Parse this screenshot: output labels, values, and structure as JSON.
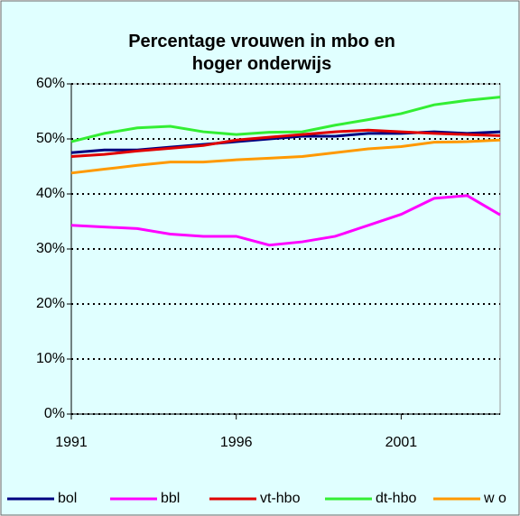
{
  "chart_data": {
    "type": "line",
    "title": "Percentage vrouwen in mbo en hoger onderwijs",
    "x": [
      1991,
      1992,
      1993,
      1994,
      1995,
      1996,
      1997,
      1998,
      1999,
      2000,
      2001,
      2002,
      2003,
      2004
    ],
    "xlim": [
      1991,
      2004
    ],
    "xticks": [
      1991,
      1996,
      2001
    ],
    "ylim": [
      0,
      60
    ],
    "yticks": [
      {
        "value": 0,
        "label": "0%"
      },
      {
        "value": 10,
        "label": "10%"
      },
      {
        "value": 20,
        "label": "20%"
      },
      {
        "value": 30,
        "label": "30%"
      },
      {
        "value": 40,
        "label": "40%"
      },
      {
        "value": 50,
        "label": "50%"
      },
      {
        "value": 60,
        "label": "60%"
      }
    ],
    "grid": true,
    "legend": "bottom",
    "series": [
      {
        "name": "bol",
        "color": "#000080",
        "values": [
          47.5,
          48,
          48,
          48.5,
          49,
          49.5,
          50,
          50.5,
          50.5,
          51,
          51,
          51.3,
          51,
          51.3
        ]
      },
      {
        "name": "bbl",
        "color": "#ff00ff",
        "values": [
          34.3,
          34,
          33.7,
          32.7,
          32.3,
          32.3,
          30.7,
          31.3,
          32.3,
          34.3,
          36.3,
          39.2,
          39.7,
          36.2
        ]
      },
      {
        "name": "vt-hbo",
        "color": "#e00000",
        "values": [
          46.8,
          47.2,
          47.8,
          48.3,
          48.8,
          49.8,
          50.3,
          50.8,
          51.3,
          51.6,
          51.3,
          51,
          50.8,
          50.6
        ]
      },
      {
        "name": "dt-hbo",
        "color": "#33ee33",
        "values": [
          49.5,
          51,
          52,
          52.3,
          51.3,
          50.8,
          51.2,
          51.3,
          52.5,
          53.5,
          54.6,
          56.2,
          57,
          57.6
        ]
      },
      {
        "name": "w o",
        "color": "#ff9900",
        "values": [
          43.8,
          44.5,
          45.2,
          45.8,
          45.8,
          46.2,
          46.5,
          46.8,
          47.5,
          48.2,
          48.6,
          49.4,
          49.5,
          49.8
        ]
      }
    ]
  }
}
